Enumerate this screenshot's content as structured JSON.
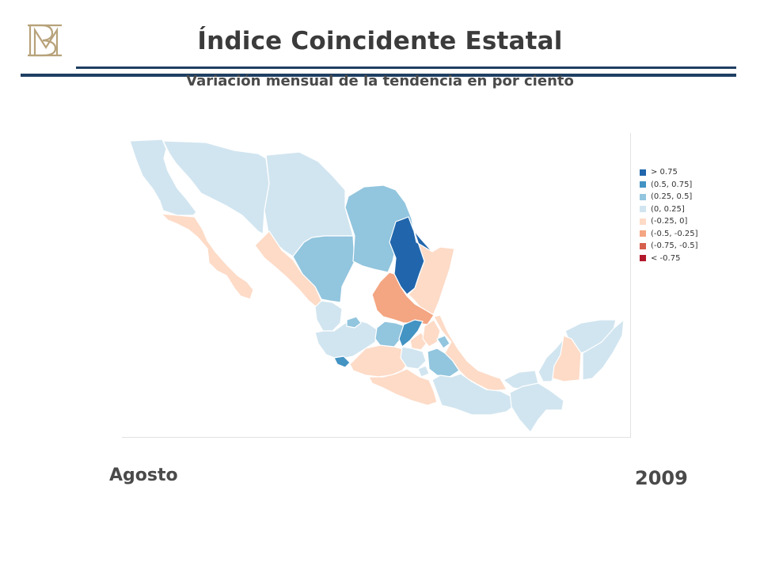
{
  "header": {
    "title": "Índice Coincidente Estatal",
    "subtitle": "Variación mensual de la tendencia en por ciento",
    "logo_icon": "bm-monogram-logo-icon"
  },
  "legend": {
    "items": [
      {
        "label": "> 0.75",
        "color": "#2166ac"
      },
      {
        "label": "(0.5, 0.75]",
        "color": "#4393c3"
      },
      {
        "label": "(0.25, 0.5]",
        "color": "#92c5de"
      },
      {
        "label": "(0, 0.25]",
        "color": "#d1e5f0"
      },
      {
        "label": "(-0.25, 0]",
        "color": "#fddbc7"
      },
      {
        "label": "(-0.5, -0.25]",
        "color": "#f4a582"
      },
      {
        "label": "(-0.75, -0.5]",
        "color": "#d6604d"
      },
      {
        "label": "< -0.75",
        "color": "#b2182b"
      }
    ]
  },
  "footer": {
    "month": "Agosto",
    "year": "2009"
  }
}
